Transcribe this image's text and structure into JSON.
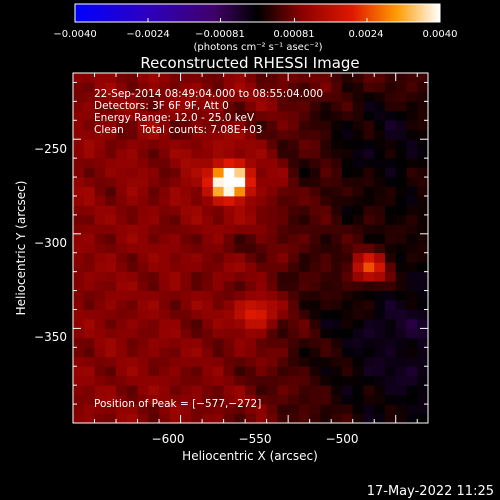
{
  "chart_data": {
    "type": "heatmap",
    "title": "Reconstructed RHESSI Image",
    "xlabel": "Heliocentric X (arcsec)",
    "ylabel": "Heliocentric Y (arcsec)",
    "xlim": [
      -650,
      -485
    ],
    "ylim": [
      -400,
      -215
    ],
    "x_ticks": [
      -600,
      -550,
      -500
    ],
    "x_tick_labels": [
      "−600",
      "−550",
      "−500"
    ],
    "y_ticks": [
      -350,
      -300,
      -250
    ],
    "y_tick_labels": [
      "−350",
      "−300",
      "−250"
    ],
    "colorbar": {
      "range": [
        -0.004,
        0.004
      ],
      "ticks": [
        -0.004,
        -0.0024,
        -0.00081,
        0.00081,
        0.0024,
        0.004
      ],
      "tick_labels": [
        "−0.0040",
        "−0.0024",
        "−0.00081",
        "0.00081",
        "0.0024",
        "0.0040"
      ],
      "units": "(photons cm⁻² s⁻¹ asec⁻²)"
    },
    "sources": [
      {
        "x": -577,
        "y": -272,
        "peak": 0.004
      },
      {
        "x": -512,
        "y": -318,
        "peak": 0.0021
      },
      {
        "x": -565,
        "y": -342,
        "peak": 0.0014
      }
    ],
    "info_lines": [
      "22-Sep-2014 08:49:04.000 to 08:55:04.000",
      "Detectors: 3F 6F 9F, Att 0",
      "Energy Range: 12.0 - 25.0 keV",
      "Clean     Total counts: 7.08E+03"
    ],
    "peak_label": "Position of Peak = [−577,−272]"
  },
  "footer": {
    "date": "17-May-2022 11:25"
  }
}
